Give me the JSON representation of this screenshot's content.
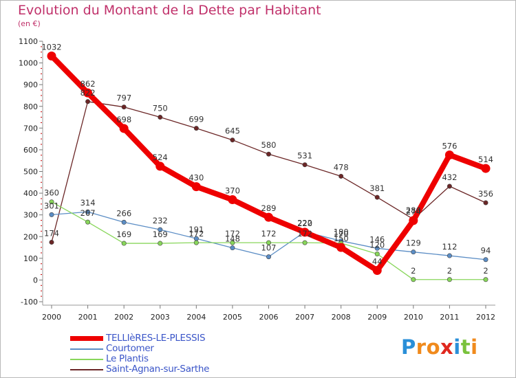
{
  "chart_data": {
    "type": "line",
    "title": "Evolution du Montant de la Dette par Habitant",
    "subtitle": "(en €)",
    "x": [
      "2000",
      "2001",
      "2002",
      "2003",
      "2004",
      "2005",
      "2006",
      "2007",
      "2008",
      "2009",
      "2010",
      "2011",
      "2012"
    ],
    "ylim": [
      -100,
      1100
    ],
    "yticks": [
      -100,
      0,
      100,
      200,
      300,
      400,
      500,
      600,
      700,
      800,
      900,
      1000,
      1100
    ],
    "grid": false,
    "legend_position": "bottom-left",
    "series": [
      {
        "name": "TELLIèRES-LE-PLESSIS",
        "color": "#ee0000",
        "values": [
          1032,
          862,
          698,
          524,
          430,
          370,
          289,
          220,
          150,
          44,
          274,
          576,
          514
        ]
      },
      {
        "name": "Courtomer",
        "color": "#5b8dc5",
        "values": [
          301,
          314,
          266,
          232,
          191,
          148,
          107,
          222,
          180,
          146,
          129,
          112,
          94
        ]
      },
      {
        "name": "Le Plantis",
        "color": "#88d65a",
        "values": [
          360,
          267,
          169,
          169,
          172,
          172,
          172,
          172,
          170,
          120,
          2,
          2,
          2
        ]
      },
      {
        "name": "Saint-Agnan-sur-Sarthe",
        "color": "#6b2626",
        "values": [
          174,
          822,
          797,
          750,
          699,
          645,
          580,
          531,
          478,
          381,
          280,
          432,
          356
        ]
      }
    ]
  },
  "logo": {
    "letters": [
      "P",
      "r",
      "o",
      "x",
      "i",
      "t",
      "i"
    ],
    "colors": [
      "#2a8fd8",
      "#f08a1c",
      "#f08a1c",
      "#e0281e",
      "#2a8fd8",
      "#7ac23c",
      "#f08a1c"
    ]
  }
}
